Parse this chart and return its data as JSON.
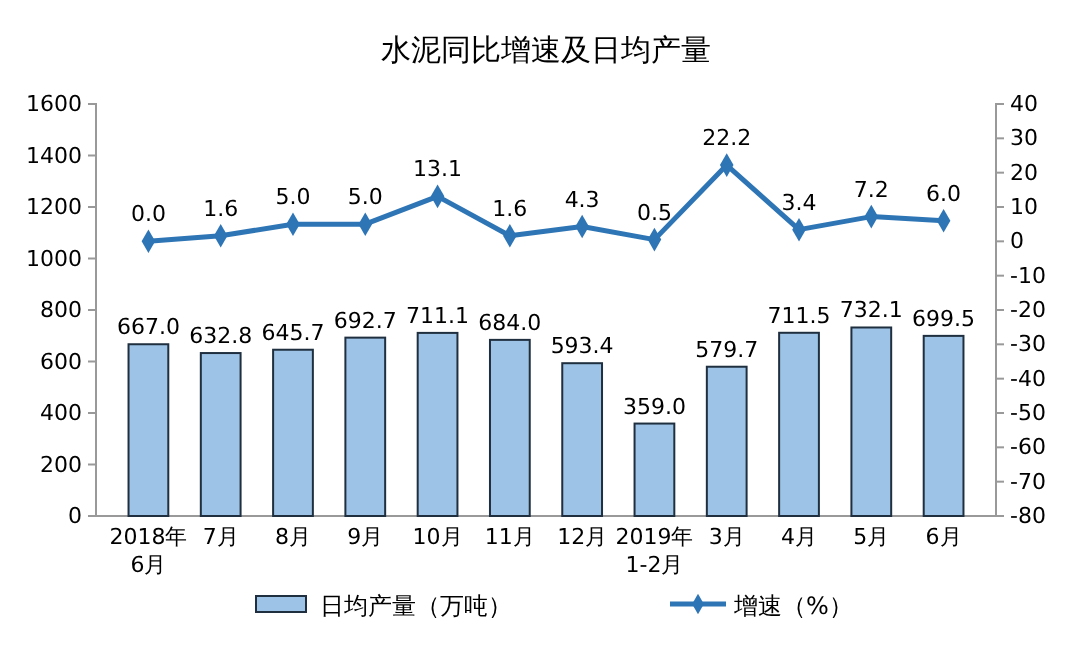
{
  "chart_data": {
    "type": "bar",
    "title": "水泥同比增速及日均产量",
    "categories": [
      "2018年\n6月",
      "7月",
      "8月",
      "9月",
      "10月",
      "11月",
      "12月",
      "2019年\n1-2月",
      "3月",
      "4月",
      "5月",
      "6月"
    ],
    "series": [
      {
        "name": "日均产量（万吨）",
        "color": "#9dc3e6",
        "values": [
          667.0,
          632.8,
          645.7,
          692.7,
          711.1,
          684.0,
          593.4,
          359.0,
          579.7,
          711.5,
          732.1,
          699.5
        ],
        "value_labels": [
          "667.0",
          "632.8",
          "645.7",
          "692.7",
          "711.1",
          "684.0",
          "593.4",
          "359.0",
          "579.7",
          "711.5",
          "732.1",
          "699.5"
        ]
      },
      {
        "name": "增速（%）",
        "type": "line",
        "axis": "y2",
        "color": "#2e75b6",
        "marker": "diamond",
        "values": [
          0.0,
          1.6,
          5.0,
          5.0,
          13.1,
          1.6,
          4.3,
          0.5,
          22.2,
          3.4,
          7.2,
          6.0
        ],
        "value_labels": [
          "0.0",
          "1.6",
          "5.0",
          "5.0",
          "13.1",
          "1.6",
          "4.3",
          "0.5",
          "22.2",
          "3.4",
          "7.2",
          "6.0"
        ]
      }
    ],
    "ylim": [
      0,
      1600
    ],
    "yticks": [
      0,
      200,
      400,
      600,
      800,
      1000,
      1200,
      1400,
      1600
    ],
    "y2lim": [
      -80,
      40
    ],
    "y2ticks": [
      -80,
      -70,
      -60,
      -50,
      -40,
      -30,
      -20,
      -10,
      0,
      10,
      20,
      30,
      40
    ],
    "legend": "bottom",
    "grid": false
  }
}
